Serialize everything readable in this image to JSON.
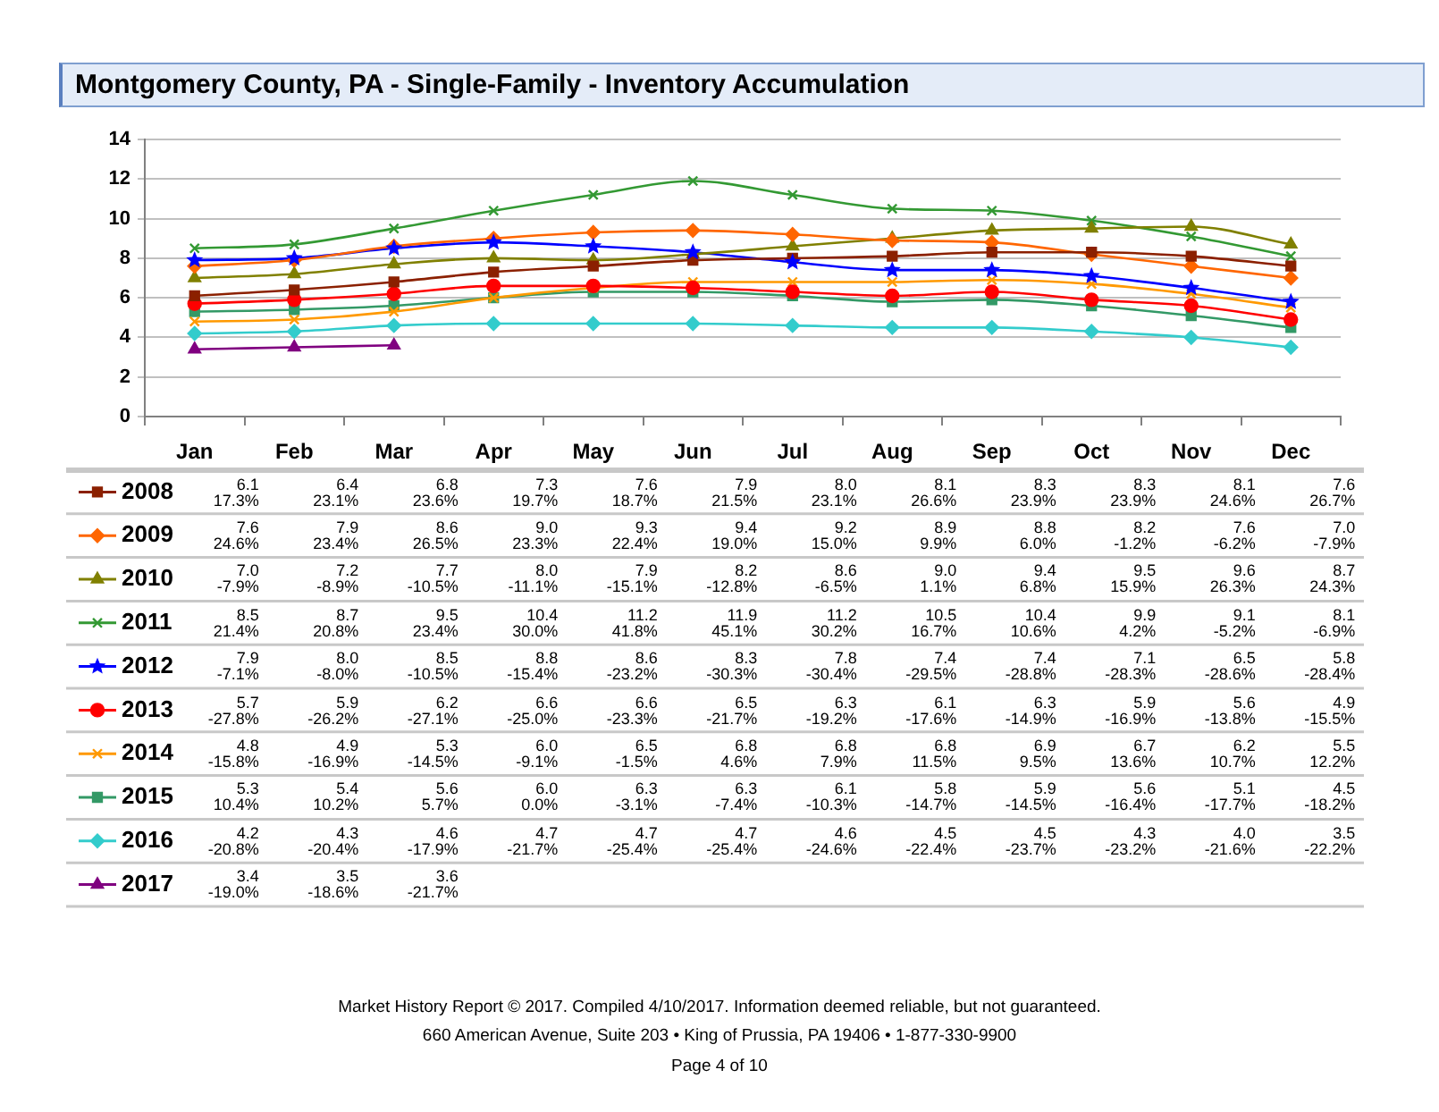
{
  "chart_data": {
    "type": "line",
    "title": "Montgomery County, PA - Single-Family - Inventory Accumulation",
    "categories": [
      "Jan",
      "Feb",
      "Mar",
      "Apr",
      "May",
      "Jun",
      "Jul",
      "Aug",
      "Sep",
      "Oct",
      "Nov",
      "Dec"
    ],
    "ylim": [
      0,
      14
    ],
    "yticks": [
      0,
      2,
      4,
      6,
      8,
      10,
      12,
      14
    ],
    "grid": "y",
    "legend": "bottom",
    "series": [
      {
        "name": "2008",
        "color": "#8b2000",
        "marker": "square",
        "values": [
          6.1,
          6.4,
          6.8,
          7.3,
          7.6,
          7.9,
          8.0,
          8.1,
          8.3,
          8.3,
          8.1,
          7.6
        ],
        "value_labels": [
          "6.1\n17.3%",
          "6.4\n23.1%",
          "6.8\n23.6%",
          "7.3\n19.7%",
          "7.6\n18.7%",
          "7.9\n21.5%",
          "8.0\n23.1%",
          "8.1\n26.6%",
          "8.3\n23.9%",
          "8.3\n23.9%",
          "8.1\n24.6%",
          "7.6\n26.7%"
        ]
      },
      {
        "name": "2009",
        "color": "#ff6600",
        "marker": "diamond",
        "values": [
          7.6,
          7.9,
          8.6,
          9.0,
          9.3,
          9.4,
          9.2,
          8.9,
          8.8,
          8.2,
          7.6,
          7.0
        ],
        "value_labels": [
          "7.6\n24.6%",
          "7.9\n23.4%",
          "8.6\n26.5%",
          "9.0\n23.3%",
          "9.3\n22.4%",
          "9.4\n19.0%",
          "9.2\n15.0%",
          "8.9\n9.9%",
          "8.8\n6.0%",
          "8.2\n-1.2%",
          "7.6\n-6.2%",
          "7.0\n-7.9%"
        ]
      },
      {
        "name": "2010",
        "color": "#808000",
        "marker": "triangle",
        "values": [
          7.0,
          7.2,
          7.7,
          8.0,
          7.9,
          8.2,
          8.6,
          9.0,
          9.4,
          9.5,
          9.6,
          8.7
        ],
        "value_labels": [
          "7.0\n-7.9%",
          "7.2\n-8.9%",
          "7.7\n-10.5%",
          "8.0\n-11.1%",
          "7.9\n-15.1%",
          "8.2\n-12.8%",
          "8.6\n-6.5%",
          "9.0\n1.1%",
          "9.4\n6.8%",
          "9.5\n15.9%",
          "9.6\n26.3%",
          "8.7\n24.3%"
        ]
      },
      {
        "name": "2011",
        "color": "#339933",
        "marker": "cross",
        "values": [
          8.5,
          8.7,
          9.5,
          10.4,
          11.2,
          11.9,
          11.2,
          10.5,
          10.4,
          9.9,
          9.1,
          8.1
        ],
        "value_labels": [
          "8.5\n21.4%",
          "8.7\n20.8%",
          "9.5\n23.4%",
          "10.4\n30.0%",
          "11.2\n41.8%",
          "11.9\n45.1%",
          "11.2\n30.2%",
          "10.5\n16.7%",
          "10.4\n10.6%",
          "9.9\n4.2%",
          "9.1\n-5.2%",
          "8.1\n-6.9%"
        ]
      },
      {
        "name": "2012",
        "color": "#0000ff",
        "marker": "star",
        "values": [
          7.9,
          8.0,
          8.5,
          8.8,
          8.6,
          8.3,
          7.8,
          7.4,
          7.4,
          7.1,
          6.5,
          5.8
        ],
        "value_labels": [
          "7.9\n-7.1%",
          "8.0\n-8.0%",
          "8.5\n-10.5%",
          "8.8\n-15.4%",
          "8.6\n-23.2%",
          "8.3\n-30.3%",
          "7.8\n-30.4%",
          "7.4\n-29.5%",
          "7.4\n-28.8%",
          "7.1\n-28.3%",
          "6.5\n-28.6%",
          "5.8\n-28.4%"
        ]
      },
      {
        "name": "2013",
        "color": "#ff0000",
        "marker": "circle",
        "values": [
          5.7,
          5.9,
          6.2,
          6.6,
          6.6,
          6.5,
          6.3,
          6.1,
          6.3,
          5.9,
          5.6,
          4.9
        ],
        "value_labels": [
          "5.7\n-27.8%",
          "5.9\n-26.2%",
          "6.2\n-27.1%",
          "6.6\n-25.0%",
          "6.6\n-23.3%",
          "6.5\n-21.7%",
          "6.3\n-19.2%",
          "6.1\n-17.6%",
          "6.3\n-14.9%",
          "5.9\n-16.9%",
          "5.6\n-13.8%",
          "4.9\n-15.5%"
        ]
      },
      {
        "name": "2014",
        "color": "#ff9900",
        "marker": "cross",
        "values": [
          4.8,
          4.9,
          5.3,
          6.0,
          6.5,
          6.8,
          6.8,
          6.8,
          6.9,
          6.7,
          6.2,
          5.5
        ],
        "value_labels": [
          "4.8\n-15.8%",
          "4.9\n-16.9%",
          "5.3\n-14.5%",
          "6.0\n-9.1%",
          "6.5\n-1.5%",
          "6.8\n4.6%",
          "6.8\n7.9%",
          "6.8\n11.5%",
          "6.9\n9.5%",
          "6.7\n13.6%",
          "6.2\n10.7%",
          "5.5\n12.2%"
        ]
      },
      {
        "name": "2015",
        "color": "#339966",
        "marker": "square",
        "values": [
          5.3,
          5.4,
          5.6,
          6.0,
          6.3,
          6.3,
          6.1,
          5.8,
          5.9,
          5.6,
          5.1,
          4.5
        ],
        "value_labels": [
          "5.3\n10.4%",
          "5.4\n10.2%",
          "5.6\n5.7%",
          "6.0\n0.0%",
          "6.3\n-3.1%",
          "6.3\n-7.4%",
          "6.1\n-10.3%",
          "5.8\n-14.7%",
          "5.9\n-14.5%",
          "5.6\n-16.4%",
          "5.1\n-17.7%",
          "4.5\n-18.2%"
        ]
      },
      {
        "name": "2016",
        "color": "#33cccc",
        "marker": "diamond",
        "values": [
          4.2,
          4.3,
          4.6,
          4.7,
          4.7,
          4.7,
          4.6,
          4.5,
          4.5,
          4.3,
          4.0,
          3.5
        ],
        "value_labels": [
          "4.2\n-20.8%",
          "4.3\n-20.4%",
          "4.6\n-17.9%",
          "4.7\n-21.7%",
          "4.7\n-25.4%",
          "4.7\n-25.4%",
          "4.6\n-24.6%",
          "4.5\n-22.4%",
          "4.5\n-23.7%",
          "4.3\n-23.2%",
          "4.0\n-21.6%",
          "3.5\n-22.2%"
        ]
      },
      {
        "name": "2017",
        "color": "#800080",
        "marker": "triangle",
        "values": [
          3.4,
          3.5,
          3.6,
          null,
          null,
          null,
          null,
          null,
          null,
          null,
          null,
          null
        ],
        "value_labels": [
          "3.4\n-19.0%",
          "3.5\n-18.6%",
          "3.6\n-21.7%",
          null,
          null,
          null,
          null,
          null,
          null,
          null,
          null,
          null
        ]
      }
    ],
    "annotations": [
      "Market History Report © 2017. Compiled 4/10/2017. Information deemed reliable, but not guaranteed.",
      "660 American Avenue, Suite 203 • King of Prussia, PA 19406 • 1-877-330-9900",
      "Page 4 of 10"
    ]
  }
}
